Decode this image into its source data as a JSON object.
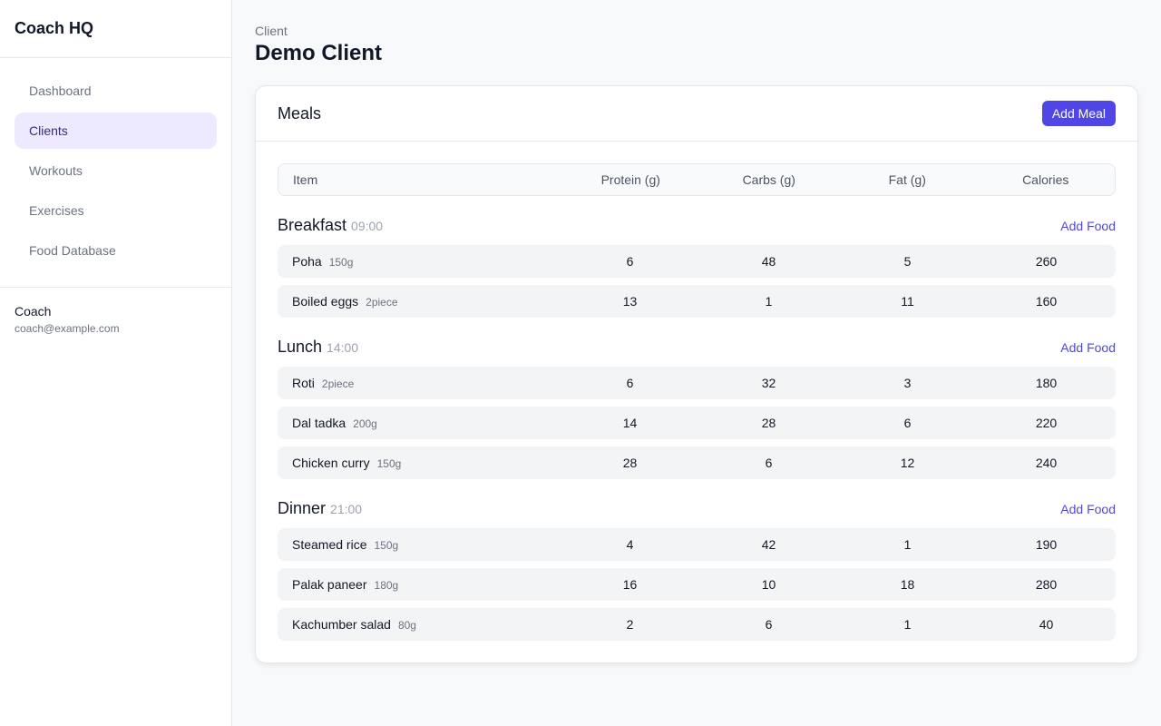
{
  "sidebar": {
    "brand": "Coach HQ",
    "nav": [
      {
        "label": "Dashboard",
        "active": false
      },
      {
        "label": "Clients",
        "active": true
      },
      {
        "label": "Workouts",
        "active": false
      },
      {
        "label": "Exercises",
        "active": false
      },
      {
        "label": "Food Database",
        "active": false
      }
    ],
    "user": {
      "name": "Coach",
      "email": "coach@example.com"
    }
  },
  "header": {
    "label": "Client",
    "title": "Demo Client"
  },
  "card": {
    "title": "Meals",
    "button": "Add Meal",
    "table": {
      "columns": [
        "Item",
        "Protein (g)",
        "Carbs (g)",
        "Fat (g)",
        "Calories"
      ],
      "meals": [
        {
          "name": "Breakfast",
          "time": "09:00",
          "action": "Add Food",
          "items": [
            {
              "name": "Poha",
              "qty": "150g",
              "protein": 6,
              "carbs": 48,
              "fat": 5,
              "calories": 260
            },
            {
              "name": "Boiled eggs",
              "qty": "2piece",
              "protein": 13,
              "carbs": 1,
              "fat": 11,
              "calories": 160
            }
          ]
        },
        {
          "name": "Lunch",
          "time": "14:00",
          "action": "Add Food",
          "items": [
            {
              "name": "Roti",
              "qty": "2piece",
              "protein": 6,
              "carbs": 32,
              "fat": 3,
              "calories": 180
            },
            {
              "name": "Dal tadka",
              "qty": "200g",
              "protein": 14,
              "carbs": 28,
              "fat": 6,
              "calories": 220
            },
            {
              "name": "Chicken curry",
              "qty": "150g",
              "protein": 28,
              "carbs": 6,
              "fat": 12,
              "calories": 240
            }
          ]
        },
        {
          "name": "Dinner",
          "time": "21:00",
          "action": "Add Food",
          "items": [
            {
              "name": "Steamed rice",
              "qty": "150g",
              "protein": 4,
              "carbs": 42,
              "fat": 1,
              "calories": 190
            },
            {
              "name": "Palak paneer",
              "qty": "180g",
              "protein": 16,
              "carbs": 10,
              "fat": 18,
              "calories": 280
            },
            {
              "name": "Kachumber salad",
              "qty": "80g",
              "protein": 2,
              "carbs": 6,
              "fat": 1,
              "calories": 40
            }
          ]
        }
      ]
    }
  }
}
